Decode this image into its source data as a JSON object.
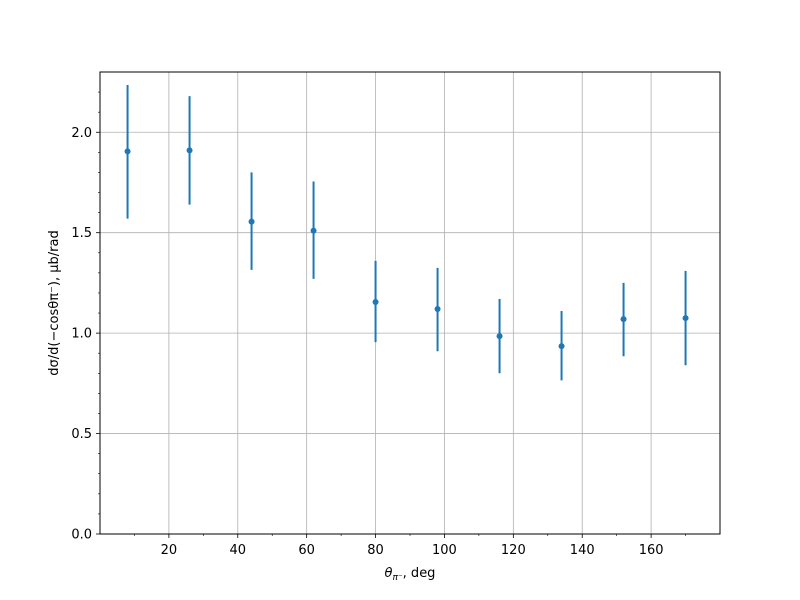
{
  "chart_data": {
    "type": "scatter",
    "xlabel_main": "θ",
    "xlabel_sub": "π⁻",
    "xlabel_rest": ", deg",
    "ylabel": "dσ/d(−cosθπ⁻), μb/rad",
    "xlim": [
      0,
      180
    ],
    "ylim": [
      0.0,
      2.3
    ],
    "grid": true,
    "xticks": [
      20,
      40,
      60,
      80,
      100,
      120,
      140,
      160
    ],
    "xtick_labels": [
      "20",
      "40",
      "60",
      "80",
      "100",
      "120",
      "140",
      "160"
    ],
    "yticks": [
      0.0,
      0.5,
      1.0,
      1.5,
      2.0
    ],
    "ytick_labels": [
      "0.0",
      "0.5",
      "1.0",
      "1.5",
      "2.0"
    ],
    "color": "#1f77b4",
    "points": [
      {
        "x": 8,
        "y": 1.905,
        "ylo": 1.57,
        "yhi": 2.235
      },
      {
        "x": 26,
        "y": 1.91,
        "ylo": 1.64,
        "yhi": 2.18
      },
      {
        "x": 44,
        "y": 1.555,
        "ylo": 1.315,
        "yhi": 1.8
      },
      {
        "x": 62,
        "y": 1.51,
        "ylo": 1.27,
        "yhi": 1.755
      },
      {
        "x": 80,
        "y": 1.155,
        "ylo": 0.955,
        "yhi": 1.36
      },
      {
        "x": 98,
        "y": 1.12,
        "ylo": 0.91,
        "yhi": 1.325
      },
      {
        "x": 116,
        "y": 0.985,
        "ylo": 0.8,
        "yhi": 1.17
      },
      {
        "x": 134,
        "y": 0.935,
        "ylo": 0.765,
        "yhi": 1.11
      },
      {
        "x": 152,
        "y": 1.07,
        "ylo": 0.885,
        "yhi": 1.25
      },
      {
        "x": 170,
        "y": 1.075,
        "ylo": 0.84,
        "yhi": 1.31
      }
    ]
  }
}
